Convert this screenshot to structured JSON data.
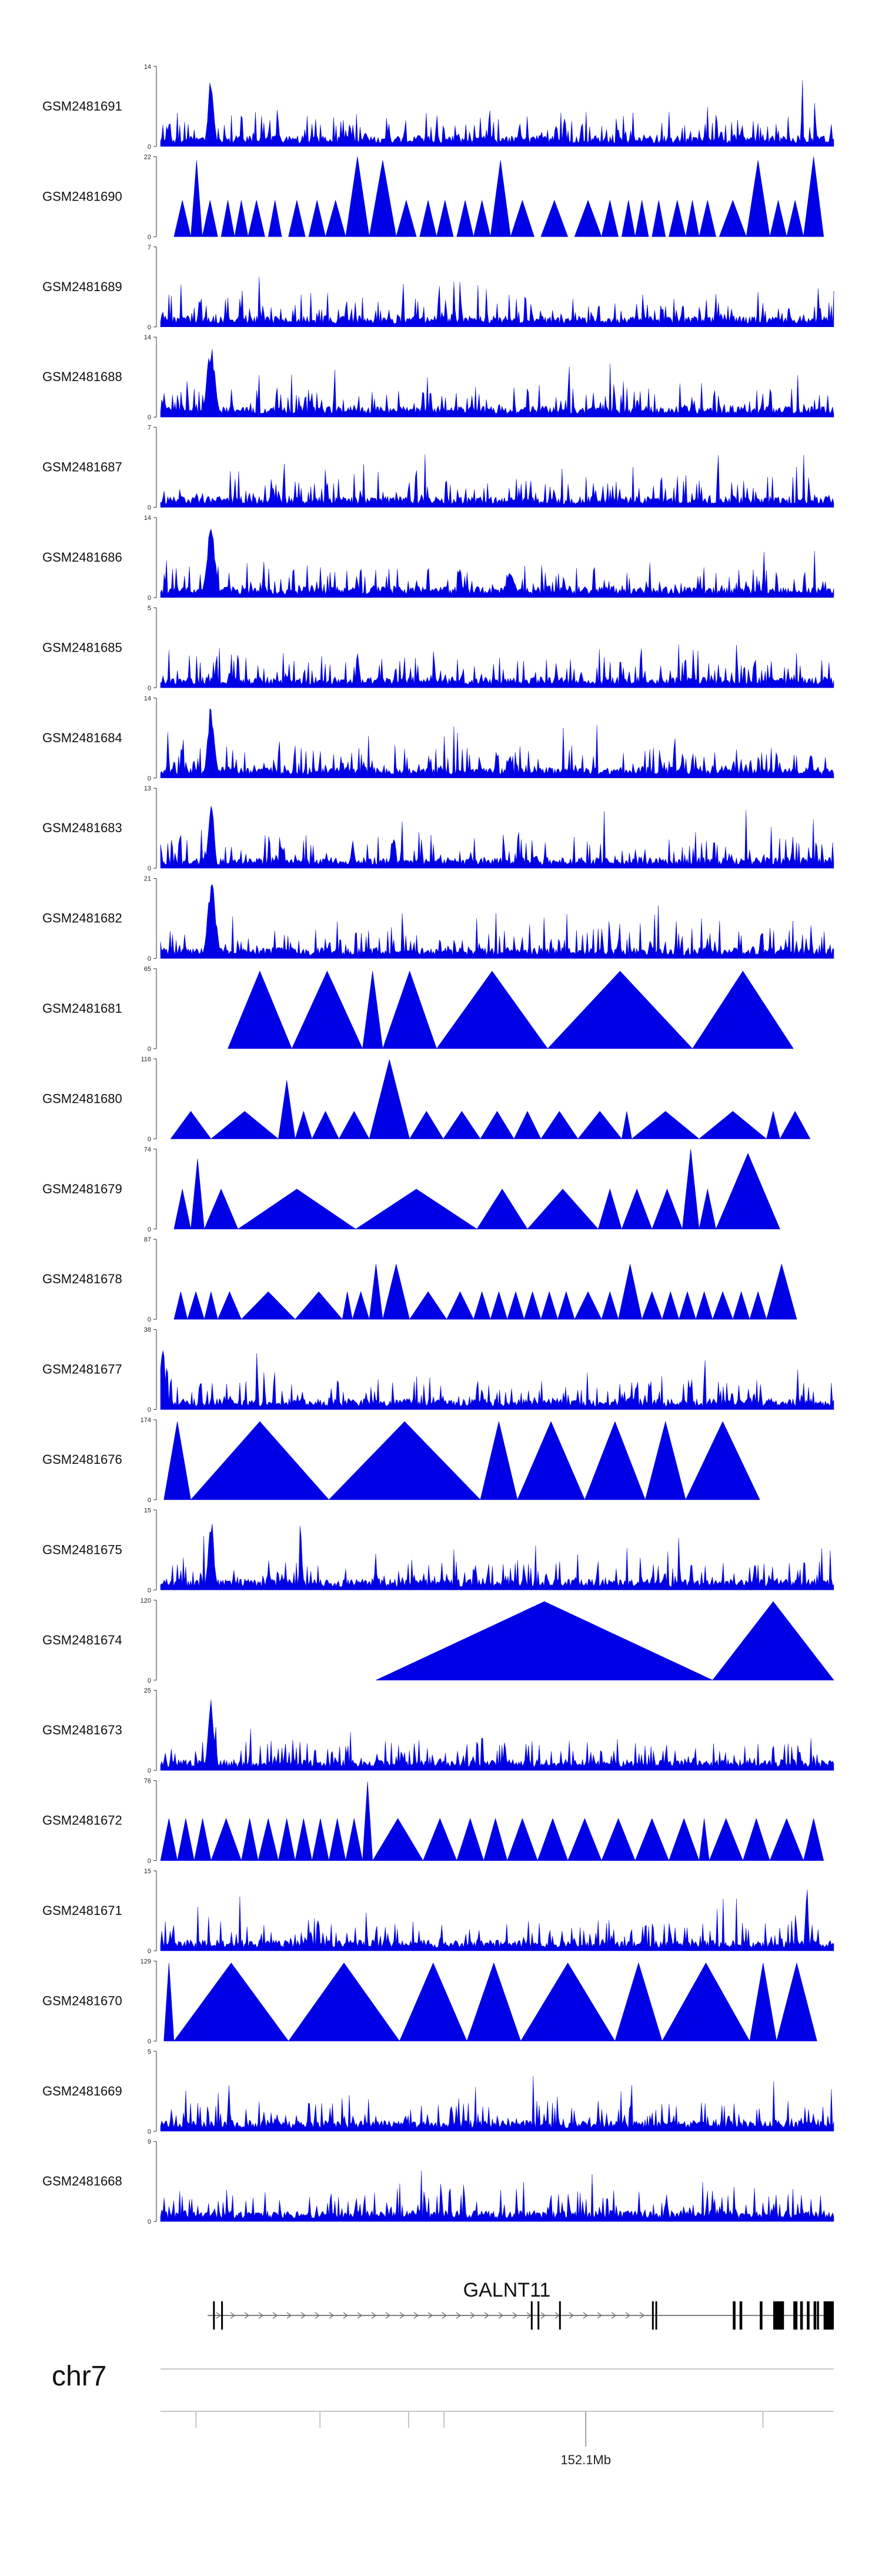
{
  "chart_data": {
    "type": "area",
    "title": "",
    "xlabel": "",
    "ylabel": "",
    "track_color": "#0000e6",
    "x_domain_mb": [
      151.86,
      152.24
    ],
    "tracks": [
      {
        "name": "GSM2481691",
        "ylim": [
          0,
          14
        ],
        "style": "noise",
        "seed": 11,
        "peaks": [
          [
            0.075,
            13,
            0.004
          ]
        ]
      },
      {
        "name": "GSM2481690",
        "ylim": [
          0,
          22
        ],
        "style": "triangles",
        "seed": 12,
        "spans": [
          [
            0.02,
            0.045,
            10
          ],
          [
            0.045,
            0.062,
            21
          ],
          [
            0.062,
            0.085,
            10
          ],
          [
            0.09,
            0.11,
            10
          ],
          [
            0.11,
            0.13,
            10
          ],
          [
            0.13,
            0.155,
            10
          ],
          [
            0.16,
            0.18,
            10
          ],
          [
            0.19,
            0.215,
            10
          ],
          [
            0.22,
            0.245,
            10
          ],
          [
            0.245,
            0.275,
            10
          ],
          [
            0.275,
            0.31,
            22
          ],
          [
            0.31,
            0.35,
            21
          ],
          [
            0.35,
            0.38,
            10
          ],
          [
            0.385,
            0.41,
            10
          ],
          [
            0.41,
            0.435,
            10
          ],
          [
            0.44,
            0.465,
            10
          ],
          [
            0.465,
            0.49,
            10
          ],
          [
            0.49,
            0.52,
            21
          ],
          [
            0.52,
            0.555,
            10
          ],
          [
            0.565,
            0.605,
            10
          ],
          [
            0.615,
            0.655,
            10
          ],
          [
            0.655,
            0.68,
            10
          ],
          [
            0.685,
            0.705,
            10
          ],
          [
            0.705,
            0.725,
            10
          ],
          [
            0.73,
            0.75,
            10
          ],
          [
            0.755,
            0.78,
            10
          ],
          [
            0.78,
            0.8,
            10
          ],
          [
            0.8,
            0.825,
            10
          ],
          [
            0.83,
            0.87,
            10
          ],
          [
            0.87,
            0.905,
            21
          ],
          [
            0.905,
            0.93,
            10
          ],
          [
            0.93,
            0.955,
            10
          ],
          [
            0.955,
            0.985,
            22
          ]
        ]
      },
      {
        "name": "GSM2481689",
        "ylim": [
          0,
          7
        ],
        "style": "noise",
        "seed": 13,
        "peaks": []
      },
      {
        "name": "GSM2481688",
        "ylim": [
          0,
          14
        ],
        "style": "noise",
        "seed": 14,
        "peaks": [
          [
            0.075,
            13,
            0.006
          ]
        ]
      },
      {
        "name": "GSM2481687",
        "ylim": [
          0,
          7
        ],
        "style": "noise",
        "seed": 15,
        "peaks": []
      },
      {
        "name": "GSM2481686",
        "ylim": [
          0,
          14
        ],
        "style": "noise",
        "seed": 16,
        "peaks": [
          [
            0.075,
            13,
            0.006
          ],
          [
            0.52,
            5,
            0.006
          ]
        ]
      },
      {
        "name": "GSM2481685",
        "ylim": [
          0,
          5
        ],
        "style": "noise",
        "seed": 17,
        "peaks": []
      },
      {
        "name": "GSM2481684",
        "ylim": [
          0,
          14
        ],
        "style": "noise",
        "seed": 18,
        "peaks": [
          [
            0.075,
            13,
            0.005
          ],
          [
            0.27,
            3,
            0.003
          ]
        ]
      },
      {
        "name": "GSM2481683",
        "ylim": [
          0,
          13
        ],
        "style": "noise",
        "seed": 19,
        "peaks": [
          [
            0.075,
            12,
            0.004
          ]
        ]
      },
      {
        "name": "GSM2481682",
        "ylim": [
          0,
          21
        ],
        "style": "noise",
        "seed": 20,
        "peaks": [
          [
            0.076,
            20,
            0.006
          ]
        ]
      },
      {
        "name": "GSM2481681",
        "ylim": [
          0,
          65
        ],
        "style": "triangles",
        "seed": 21,
        "spans": [
          [
            0.1,
            0.195,
            63
          ],
          [
            0.195,
            0.3,
            63
          ],
          [
            0.3,
            0.33,
            63
          ],
          [
            0.33,
            0.41,
            63
          ],
          [
            0.41,
            0.575,
            63
          ],
          [
            0.575,
            0.79,
            63
          ],
          [
            0.79,
            0.94,
            63
          ]
        ]
      },
      {
        "name": "GSM2481680",
        "ylim": [
          0,
          116
        ],
        "style": "triangles",
        "seed": 22,
        "spans": [
          [
            0.015,
            0.075,
            40
          ],
          [
            0.075,
            0.175,
            40
          ],
          [
            0.175,
            0.2,
            85
          ],
          [
            0.2,
            0.225,
            40
          ],
          [
            0.225,
            0.265,
            40
          ],
          [
            0.265,
            0.31,
            40
          ],
          [
            0.31,
            0.37,
            115
          ],
          [
            0.37,
            0.42,
            40
          ],
          [
            0.42,
            0.475,
            40
          ],
          [
            0.475,
            0.525,
            40
          ],
          [
            0.525,
            0.565,
            40
          ],
          [
            0.565,
            0.62,
            40
          ],
          [
            0.62,
            0.685,
            40
          ],
          [
            0.685,
            0.7,
            40
          ],
          [
            0.7,
            0.8,
            40
          ],
          [
            0.8,
            0.9,
            40
          ],
          [
            0.9,
            0.92,
            40
          ],
          [
            0.92,
            0.965,
            40
          ]
        ]
      },
      {
        "name": "GSM2481679",
        "ylim": [
          0,
          74
        ],
        "style": "triangles",
        "seed": 23,
        "spans": [
          [
            0.02,
            0.045,
            37
          ],
          [
            0.045,
            0.065,
            65
          ],
          [
            0.065,
            0.115,
            37
          ],
          [
            0.115,
            0.29,
            37
          ],
          [
            0.29,
            0.47,
            37
          ],
          [
            0.47,
            0.545,
            37
          ],
          [
            0.545,
            0.65,
            37
          ],
          [
            0.65,
            0.685,
            37
          ],
          [
            0.685,
            0.73,
            37
          ],
          [
            0.73,
            0.775,
            37
          ],
          [
            0.775,
            0.8,
            74
          ],
          [
            0.8,
            0.825,
            37
          ],
          [
            0.825,
            0.92,
            70
          ]
        ]
      },
      {
        "name": "GSM2481678",
        "ylim": [
          0,
          87
        ],
        "style": "triangles",
        "seed": 24,
        "spans": [
          [
            0.02,
            0.04,
            30
          ],
          [
            0.04,
            0.065,
            30
          ],
          [
            0.065,
            0.085,
            30
          ],
          [
            0.085,
            0.12,
            30
          ],
          [
            0.12,
            0.2,
            30
          ],
          [
            0.2,
            0.27,
            30
          ],
          [
            0.27,
            0.285,
            30
          ],
          [
            0.285,
            0.31,
            30
          ],
          [
            0.31,
            0.33,
            60
          ],
          [
            0.33,
            0.37,
            60
          ],
          [
            0.37,
            0.425,
            30
          ],
          [
            0.425,
            0.465,
            30
          ],
          [
            0.465,
            0.49,
            30
          ],
          [
            0.49,
            0.515,
            30
          ],
          [
            0.515,
            0.54,
            30
          ],
          [
            0.54,
            0.565,
            30
          ],
          [
            0.565,
            0.59,
            30
          ],
          [
            0.59,
            0.615,
            30
          ],
          [
            0.615,
            0.655,
            30
          ],
          [
            0.655,
            0.68,
            30
          ],
          [
            0.68,
            0.715,
            60
          ],
          [
            0.715,
            0.745,
            30
          ],
          [
            0.745,
            0.77,
            30
          ],
          [
            0.77,
            0.795,
            30
          ],
          [
            0.795,
            0.82,
            30
          ],
          [
            0.82,
            0.85,
            30
          ],
          [
            0.85,
            0.875,
            30
          ],
          [
            0.875,
            0.9,
            30
          ],
          [
            0.9,
            0.945,
            60
          ]
        ]
      },
      {
        "name": "GSM2481677",
        "ylim": [
          0,
          38
        ],
        "style": "noise",
        "seed": 25,
        "peaks": [
          [
            0.003,
            36,
            0.003
          ],
          [
            0.706,
            12,
            0.002
          ]
        ]
      },
      {
        "name": "GSM2481676",
        "ylim": [
          0,
          174
        ],
        "style": "triangles",
        "seed": 26,
        "spans": [
          [
            0.005,
            0.045,
            170
          ],
          [
            0.045,
            0.25,
            170
          ],
          [
            0.25,
            0.475,
            170
          ],
          [
            0.475,
            0.53,
            170
          ],
          [
            0.53,
            0.63,
            170
          ],
          [
            0.63,
            0.72,
            170
          ],
          [
            0.72,
            0.78,
            170
          ],
          [
            0.78,
            0.89,
            170
          ]
        ]
      },
      {
        "name": "GSM2481675",
        "ylim": [
          0,
          15
        ],
        "style": "noise",
        "seed": 27,
        "peaks": [
          [
            0.075,
            14,
            0.004
          ]
        ]
      },
      {
        "name": "GSM2481674",
        "ylim": [
          0,
          120
        ],
        "style": "triangles",
        "seed": 28,
        "spans": [
          [
            0.32,
            0.82,
            118
          ],
          [
            0.82,
            1.0,
            118
          ]
        ]
      },
      {
        "name": "GSM2481673",
        "ylim": [
          0,
          25
        ],
        "style": "noise",
        "seed": 29,
        "peaks": [
          [
            0.075,
            24,
            0.004
          ]
        ]
      },
      {
        "name": "GSM2481672",
        "ylim": [
          0,
          76
        ],
        "style": "triangles",
        "seed": 30,
        "spans": [
          [
            0.0,
            0.025,
            40
          ],
          [
            0.025,
            0.05,
            40
          ],
          [
            0.05,
            0.075,
            40
          ],
          [
            0.075,
            0.12,
            40
          ],
          [
            0.12,
            0.145,
            40
          ],
          [
            0.145,
            0.175,
            40
          ],
          [
            0.175,
            0.2,
            40
          ],
          [
            0.2,
            0.225,
            40
          ],
          [
            0.225,
            0.25,
            40
          ],
          [
            0.25,
            0.275,
            40
          ],
          [
            0.275,
            0.3,
            40
          ],
          [
            0.3,
            0.315,
            75
          ],
          [
            0.315,
            0.39,
            40
          ],
          [
            0.39,
            0.44,
            40
          ],
          [
            0.44,
            0.48,
            40
          ],
          [
            0.48,
            0.515,
            40
          ],
          [
            0.515,
            0.56,
            40
          ],
          [
            0.56,
            0.605,
            40
          ],
          [
            0.605,
            0.655,
            40
          ],
          [
            0.655,
            0.705,
            40
          ],
          [
            0.705,
            0.755,
            40
          ],
          [
            0.755,
            0.8,
            40
          ],
          [
            0.8,
            0.815,
            40
          ],
          [
            0.815,
            0.865,
            40
          ],
          [
            0.865,
            0.905,
            40
          ],
          [
            0.905,
            0.955,
            40
          ],
          [
            0.955,
            0.985,
            40
          ]
        ]
      },
      {
        "name": "GSM2481671",
        "ylim": [
          0,
          15
        ],
        "style": "noise",
        "seed": 31,
        "peaks": [
          [
            0.96,
            14,
            0.002
          ]
        ]
      },
      {
        "name": "GSM2481670",
        "ylim": [
          0,
          129
        ],
        "style": "triangles",
        "seed": 32,
        "spans": [
          [
            0.005,
            0.02,
            126
          ],
          [
            0.02,
            0.19,
            126
          ],
          [
            0.19,
            0.355,
            126
          ],
          [
            0.355,
            0.455,
            126
          ],
          [
            0.455,
            0.535,
            126
          ],
          [
            0.535,
            0.675,
            126
          ],
          [
            0.675,
            0.745,
            126
          ],
          [
            0.745,
            0.875,
            126
          ],
          [
            0.875,
            0.915,
            126
          ],
          [
            0.915,
            0.975,
            126
          ]
        ]
      },
      {
        "name": "GSM2481669",
        "ylim": [
          0,
          5
        ],
        "style": "noise",
        "seed": 33,
        "peaks": []
      },
      {
        "name": "GSM2481668",
        "ylim": [
          0,
          9
        ],
        "style": "noise",
        "seed": 34,
        "peaks": []
      }
    ],
    "gene": {
      "name": "GALNT11",
      "strand": "+",
      "exons": [
        [
          0.078,
          0.002
        ],
        [
          0.09,
          0.002
        ],
        [
          0.55,
          0.002
        ],
        [
          0.56,
          0.002
        ],
        [
          0.592,
          0.002
        ],
        [
          0.73,
          0.002
        ],
        [
          0.735,
          0.002
        ],
        [
          0.85,
          0.004
        ],
        [
          0.86,
          0.004
        ],
        [
          0.89,
          0.004
        ],
        [
          0.91,
          0.01
        ],
        [
          0.94,
          0.004
        ],
        [
          0.95,
          0.004
        ],
        [
          0.96,
          0.004
        ],
        [
          0.97,
          0.004
        ],
        [
          0.975,
          0.003
        ],
        [
          0.985,
          0.004
        ],
        [
          0.992,
          0.004
        ]
      ],
      "thick_exons": [
        [
          0.91,
          0.016
        ],
        [
          0.94,
          0.006
        ],
        [
          0.985,
          0.015
        ]
      ]
    },
    "axis": {
      "chromosome": "chr7",
      "labeled_tick": "152.1Mb",
      "labeled_tick_mb": 152.1,
      "tick_positions_mb": [
        151.88,
        151.95,
        152.0,
        152.02,
        152.1,
        152.2
      ]
    }
  }
}
